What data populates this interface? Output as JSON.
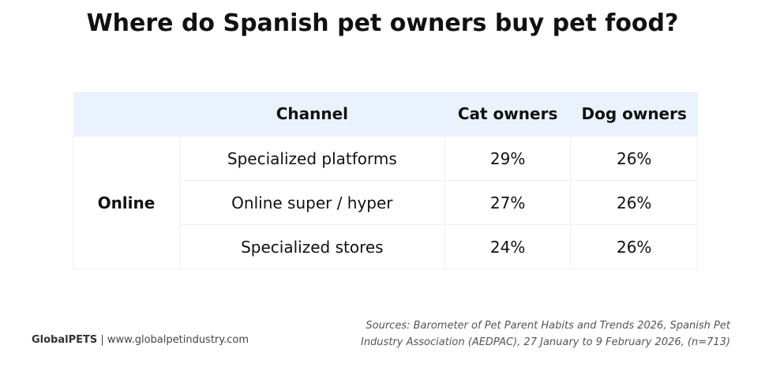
{
  "header": {
    "title": "Where do Spanish pet owners buy pet food?"
  },
  "table": {
    "columns": [
      "Channel",
      "Cat owners",
      "Dog owners"
    ],
    "group": "Online",
    "rows": [
      [
        "Specialized platforms",
        "29%",
        "26%"
      ],
      [
        "Online super / hyper",
        "27%",
        "26%"
      ],
      [
        "Specialized stores",
        "24%",
        "26%"
      ]
    ]
  },
  "footer": {
    "brand": "GlobalPETS",
    "site": "| www.globalpetindustry.com",
    "sources": [
      "Sources: Barometer of Pet Parent Habits and Trends 2026, Spanish Pet",
      "Industry Association (AEDPAC), 27 January to 9 February 2026, (n=713)"
    ]
  }
}
